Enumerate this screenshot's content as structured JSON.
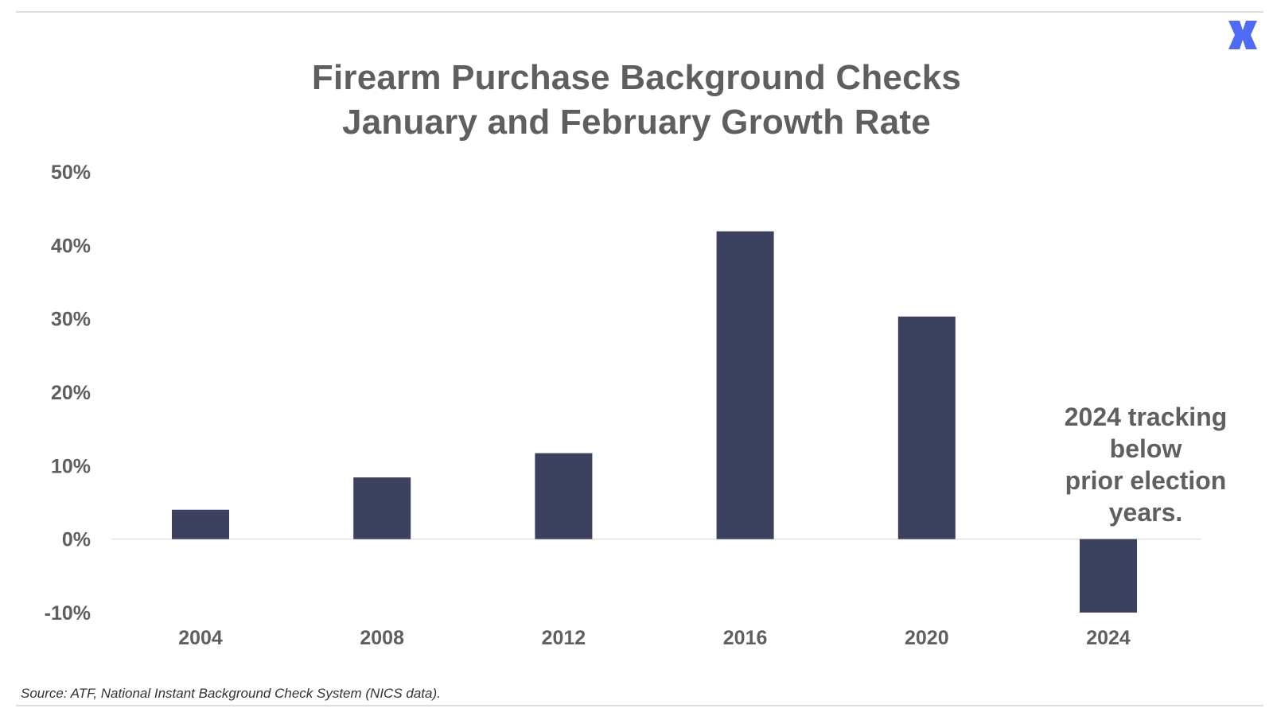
{
  "brand": {
    "icon": "x-mark-logo-icon",
    "color": "#4d6bf5"
  },
  "title_lines": [
    "Firearm Purchase Background Checks",
    "January and February Growth Rate"
  ],
  "annotation_lines": [
    "2024 tracking",
    "below",
    "prior election",
    "years."
  ],
  "source": "Source: ATF, National Instant Background Check System (NICS data).",
  "chart_data": {
    "type": "bar",
    "title": "Firearm Purchase Background Checks January and February Growth Rate",
    "xlabel": "",
    "ylabel": "",
    "categories": [
      "2004",
      "2008",
      "2012",
      "2016",
      "2020",
      "2024"
    ],
    "values": [
      4,
      8.4,
      11.7,
      41.9,
      30.3,
      -10
    ],
    "unit": "%",
    "ylim": [
      -10,
      50
    ],
    "yticks": [
      -10,
      0,
      10,
      20,
      30,
      40,
      50
    ],
    "ytick_labels": [
      "-10%",
      "0%",
      "10%",
      "20%",
      "30%",
      "40%",
      "50%"
    ],
    "grid": false,
    "legend": "none",
    "bar_color": "#3d4160",
    "zero_line_color": "#e3e3e3"
  }
}
